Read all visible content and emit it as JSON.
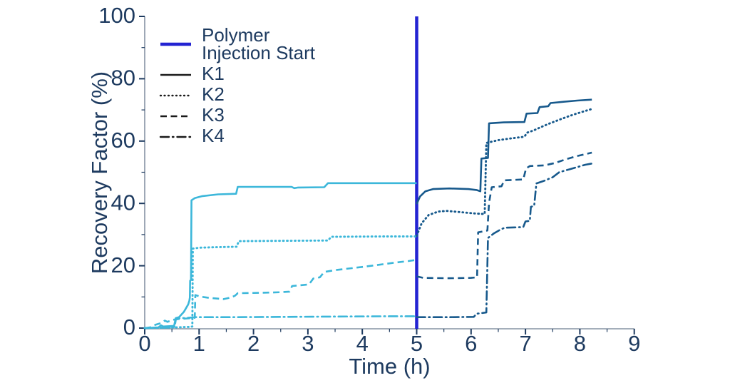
{
  "page": {
    "background": "#ffffff"
  },
  "chart_data": {
    "type": "line",
    "title": "",
    "xlabel": "Time (h)",
    "ylabel": "Recovery Factor (%)",
    "xlim": [
      0,
      9
    ],
    "ylim": [
      0,
      100
    ],
    "x_ticks": [
      0,
      1,
      2,
      3,
      4,
      5,
      6,
      7,
      8,
      9
    ],
    "y_ticks": [
      0,
      20,
      40,
      60,
      80,
      100
    ],
    "x_minor_step": 0.5,
    "y_minor_step": 10,
    "grid": false,
    "legend_position": "upper-left-inside",
    "colors": {
      "pre_injection": "#3cb7da",
      "post_injection": "#17598c",
      "injection_line": "#2323d2",
      "axis_spine": "#8593a3",
      "tick_and_text": "#1d3a5f",
      "legend_sample": "#1a1a1a"
    },
    "injection_line": {
      "x": 5,
      "label_lines": [
        "Polymer",
        "Injection Start"
      ]
    },
    "legend": [
      {
        "key": "injection",
        "label_lines": [
          "Polymer",
          "Injection Start"
        ],
        "dash": "solid",
        "color_key": "injection_line"
      },
      {
        "key": "K1",
        "label_lines": [
          "K1"
        ],
        "dash": "solid",
        "color_key": "legend_sample"
      },
      {
        "key": "K2",
        "label_lines": [
          "K2"
        ],
        "dash": "dotted",
        "color_key": "legend_sample"
      },
      {
        "key": "K3",
        "label_lines": [
          "K3"
        ],
        "dash": "dashed",
        "color_key": "legend_sample"
      },
      {
        "key": "K4",
        "label_lines": [
          "K4"
        ],
        "dash": "dashdot",
        "color_key": "legend_sample"
      }
    ],
    "series": [
      {
        "name": "K1",
        "dash": "solid",
        "segments": {
          "pre_injection": [
            [
              0,
              0
            ],
            [
              0.25,
              0.2
            ],
            [
              0.3,
              0.9
            ],
            [
              0.34,
              0.5
            ],
            [
              0.54,
              0.7
            ],
            [
              0.57,
              3.2
            ],
            [
              0.63,
              3.5
            ],
            [
              0.72,
              5.2
            ],
            [
              0.8,
              7.6
            ],
            [
              0.82,
              8.8
            ],
            [
              0.83,
              9.8
            ],
            [
              0.835,
              15.2
            ],
            [
              0.85,
              15.4
            ],
            [
              0.86,
              41.0
            ],
            [
              0.92,
              41.7
            ],
            [
              1.05,
              42.3
            ],
            [
              1.35,
              42.9
            ],
            [
              1.68,
              43.1
            ],
            [
              1.71,
              45.3
            ],
            [
              2.3,
              45.3
            ],
            [
              2.7,
              45.3
            ],
            [
              2.75,
              44.9
            ],
            [
              2.82,
              45.1
            ],
            [
              3.3,
              45.2
            ],
            [
              3.37,
              46.5
            ],
            [
              4.0,
              46.5
            ],
            [
              5.0,
              46.5
            ]
          ],
          "post_injection": [
            [
              5.0,
              39.8
            ],
            [
              5.06,
              42.2
            ],
            [
              5.16,
              43.9
            ],
            [
              5.3,
              44.6
            ],
            [
              5.6,
              44.8
            ],
            [
              5.95,
              44.6
            ],
            [
              6.1,
              44.3
            ],
            [
              6.17,
              43.9
            ],
            [
              6.19,
              54.4
            ],
            [
              6.31,
              54.6
            ],
            [
              6.33,
              65.7
            ],
            [
              6.6,
              66.0
            ],
            [
              6.98,
              66.1
            ],
            [
              7.02,
              68.8
            ],
            [
              7.22,
              69.0
            ],
            [
              7.26,
              70.9
            ],
            [
              7.42,
              71.2
            ],
            [
              7.46,
              72.2
            ],
            [
              7.7,
              72.6
            ],
            [
              7.95,
              73.0
            ],
            [
              8.22,
              73.3
            ]
          ]
        }
      },
      {
        "name": "K2",
        "dash": "dotted",
        "segments": {
          "pre_injection": [
            [
              0,
              0
            ],
            [
              0.55,
              0.2
            ],
            [
              0.84,
              0.4
            ],
            [
              0.875,
              0.5
            ],
            [
              0.885,
              25.5
            ],
            [
              1.0,
              25.8
            ],
            [
              1.4,
              26.0
            ],
            [
              1.69,
              26.1
            ],
            [
              1.73,
              27.9
            ],
            [
              2.6,
              28.0
            ],
            [
              3.37,
              28.1
            ],
            [
              3.43,
              29.3
            ],
            [
              4.4,
              29.4
            ],
            [
              5.0,
              29.4
            ]
          ],
          "post_injection": [
            [
              5.0,
              29.6
            ],
            [
              5.09,
              33.6
            ],
            [
              5.22,
              36.3
            ],
            [
              5.4,
              37.4
            ],
            [
              5.55,
              37.6
            ],
            [
              5.8,
              37.2
            ],
            [
              6.05,
              36.8
            ],
            [
              6.25,
              36.6
            ],
            [
              6.28,
              59.4
            ],
            [
              6.5,
              60.3
            ],
            [
              6.75,
              60.9
            ],
            [
              6.98,
              61.4
            ],
            [
              7.03,
              62.7
            ],
            [
              7.15,
              63.4
            ],
            [
              7.3,
              64.6
            ],
            [
              7.45,
              65.7
            ],
            [
              7.6,
              66.7
            ],
            [
              7.75,
              67.7
            ],
            [
              7.9,
              68.6
            ],
            [
              8.05,
              69.4
            ],
            [
              8.22,
              70.3
            ]
          ]
        }
      },
      {
        "name": "K3",
        "dash": "dashed",
        "segments": {
          "pre_injection": [
            [
              0,
              0
            ],
            [
              0.13,
              0.3
            ],
            [
              0.2,
              1.1
            ],
            [
              0.3,
              1.6
            ],
            [
              0.37,
              2.4
            ],
            [
              0.42,
              2.0
            ],
            [
              0.5,
              2.6
            ],
            [
              0.62,
              2.9
            ],
            [
              0.78,
              3.1
            ],
            [
              0.92,
              3.3
            ],
            [
              0.93,
              10.6
            ],
            [
              1.02,
              10.1
            ],
            [
              1.18,
              9.7
            ],
            [
              1.45,
              9.3
            ],
            [
              1.58,
              9.8
            ],
            [
              1.66,
              10.4
            ],
            [
              1.71,
              11.2
            ],
            [
              2.1,
              11.3
            ],
            [
              2.5,
              11.5
            ],
            [
              2.66,
              11.7
            ],
            [
              2.71,
              13.5
            ],
            [
              2.9,
              13.8
            ],
            [
              3.02,
              14.0
            ],
            [
              3.1,
              15.9
            ],
            [
              3.22,
              16.3
            ],
            [
              3.3,
              18.0
            ],
            [
              3.5,
              18.6
            ],
            [
              3.75,
              19.1
            ],
            [
              4.0,
              19.6
            ],
            [
              4.3,
              20.3
            ],
            [
              4.6,
              21.0
            ],
            [
              4.85,
              21.5
            ],
            [
              5.0,
              21.9
            ]
          ],
          "post_injection": [
            [
              5.0,
              16.6
            ],
            [
              5.12,
              16.1
            ],
            [
              5.6,
              16.0
            ],
            [
              6.0,
              16.1
            ],
            [
              6.11,
              16.3
            ],
            [
              6.13,
              30.7
            ],
            [
              6.3,
              31.3
            ],
            [
              6.33,
              40.2
            ],
            [
              6.38,
              45.2
            ],
            [
              6.56,
              45.5
            ],
            [
              6.61,
              47.4
            ],
            [
              6.96,
              47.7
            ],
            [
              7.01,
              51.2
            ],
            [
              7.08,
              52.0
            ],
            [
              7.35,
              52.2
            ],
            [
              7.55,
              53.0
            ],
            [
              7.75,
              54.2
            ],
            [
              7.95,
              55.2
            ],
            [
              8.1,
              55.8
            ],
            [
              8.22,
              56.3
            ]
          ]
        }
      },
      {
        "name": "K4",
        "dash": "dashdot",
        "segments": {
          "pre_injection": [
            [
              0,
              0
            ],
            [
              0.5,
              0.2
            ],
            [
              0.55,
              0.4
            ],
            [
              0.575,
              3.1
            ],
            [
              0.8,
              3.3
            ],
            [
              0.95,
              3.5
            ],
            [
              1.6,
              3.5
            ],
            [
              2.6,
              3.6
            ],
            [
              3.6,
              3.7
            ],
            [
              4.6,
              3.8
            ],
            [
              5.0,
              3.8
            ]
          ],
          "post_injection": [
            [
              5.0,
              3.5
            ],
            [
              5.6,
              3.5
            ],
            [
              6.05,
              3.6
            ],
            [
              6.1,
              4.6
            ],
            [
              6.28,
              5.0
            ],
            [
              6.31,
              28.9
            ],
            [
              6.42,
              30.4
            ],
            [
              6.55,
              31.7
            ],
            [
              6.62,
              32.2
            ],
            [
              6.96,
              32.4
            ],
            [
              7.0,
              34.2
            ],
            [
              7.08,
              34.4
            ],
            [
              7.1,
              38.9
            ],
            [
              7.16,
              39.2
            ],
            [
              7.2,
              46.4
            ],
            [
              7.35,
              47.3
            ],
            [
              7.5,
              48.4
            ],
            [
              7.62,
              50.0
            ],
            [
              7.8,
              50.9
            ],
            [
              8.0,
              51.9
            ],
            [
              8.1,
              52.4
            ],
            [
              8.22,
              52.8
            ]
          ]
        }
      }
    ]
  }
}
